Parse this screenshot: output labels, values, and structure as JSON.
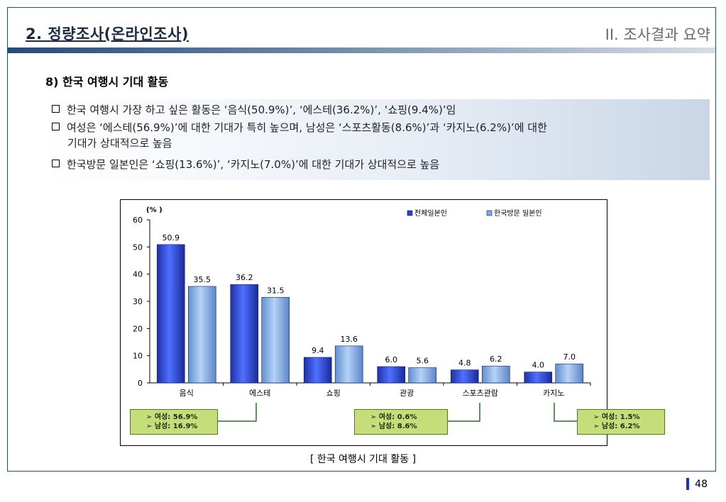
{
  "header": {
    "title": "2. 정량조사(온라인조사)",
    "section": "II. 조사결과 요약"
  },
  "section_title": "8) 한국 여행시 기대 활동",
  "summary": {
    "bullets": [
      {
        "text": "한국 여행시 가장 하고 싶은 활동은 ‘음식(50.9%)’, ‘에스테(36.2%)’, ‘쇼핑(9.4%)’임"
      },
      {
        "text": "여성은 ‘에스테(56.9%)’에 대한 기대가 특히 높으며, 남성은 ‘스포츠활동(8.6%)’과 ‘카지노(6.2%)’에 대한",
        "cont": "기대가 상대적으로 높음"
      },
      {
        "text": "한국방문 일본인은 ‘쇼핑(13.6%)’, ‘카지노(7.0%)’에 대한 기대가 상대적으로 높음"
      }
    ]
  },
  "chart_data": {
    "type": "bar",
    "ylabel": "(% )",
    "ylim": [
      0,
      60
    ],
    "yticks": [
      "0",
      "10",
      "20",
      "30",
      "40",
      "50",
      "60"
    ],
    "categories": [
      "음식",
      "에스테",
      "쇼핑",
      "관광",
      "스포츠관람",
      "카지노"
    ],
    "series": [
      {
        "name": "전체일본인",
        "values": [
          50.9,
          36.2,
          9.4,
          6.0,
          4.8,
          4.0
        ],
        "labels": [
          "50.9",
          "36.2",
          "9.4",
          "6.0",
          "4.8",
          "4.0"
        ],
        "color": "#2840c8"
      },
      {
        "name": "한국방문 일본인",
        "values": [
          35.5,
          31.5,
          13.6,
          5.6,
          6.2,
          7.0
        ],
        "labels": [
          "35.5",
          "31.5",
          "13.6",
          "5.6",
          "6.2",
          "7.0"
        ],
        "color": "#7fa9e0"
      }
    ],
    "legend_position": "top-right",
    "grid": false,
    "annotations": [
      {
        "category": "에스테",
        "lines": [
          "➢ 여성: 56.9%",
          "➢ 남성: 16.9%"
        ]
      },
      {
        "category": "스포츠관람",
        "lines": [
          "➢ 여성: 0.6%",
          "➢ 남성: 8.6%"
        ]
      },
      {
        "category": "카지노",
        "lines": [
          "➢ 여성: 1.5%",
          "➢ 남성: 6.2%"
        ]
      }
    ]
  },
  "caption": "[ 한국 여행시 기대 활동 ]",
  "page_number": "48"
}
